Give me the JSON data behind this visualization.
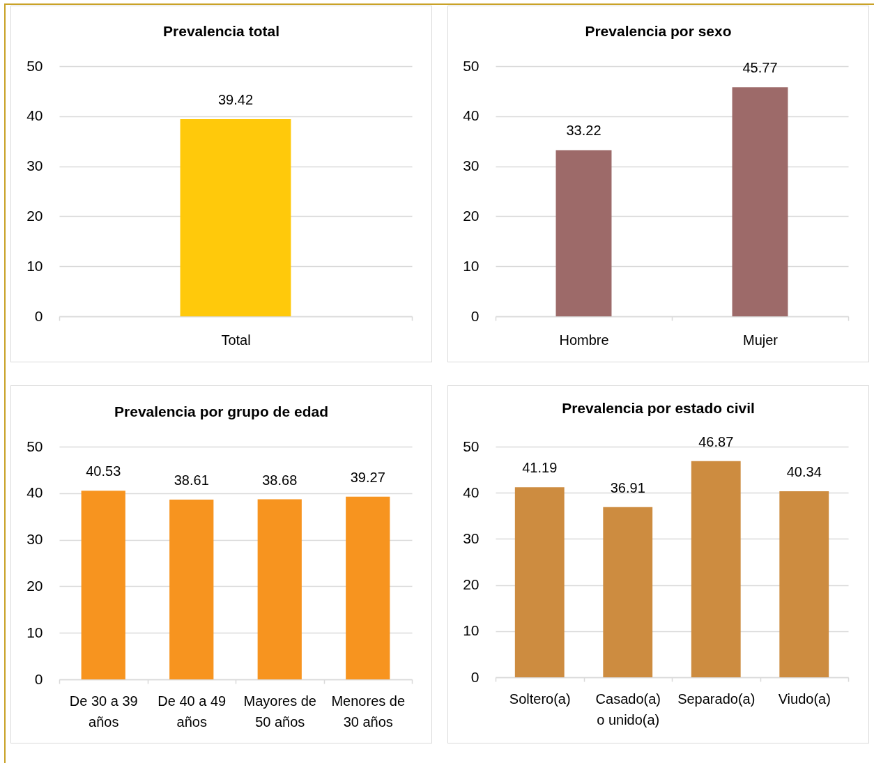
{
  "chart_data": [
    {
      "type": "bar",
      "title": "Prevalencia total",
      "categories": [
        "Total"
      ],
      "values": [
        39.42
      ],
      "color": "#ffc90b",
      "ylim": [
        0,
        50
      ],
      "yticks": [
        0,
        10,
        20,
        30,
        40,
        50
      ],
      "grid": "y",
      "data_labels": true
    },
    {
      "type": "bar",
      "title": "Prevalencia por sexo",
      "categories": [
        "Hombre",
        "Mujer"
      ],
      "values": [
        33.22,
        45.77
      ],
      "color": "#9d6a69",
      "ylim": [
        0,
        50
      ],
      "yticks": [
        0,
        10,
        20,
        30,
        40,
        50
      ],
      "grid": "y",
      "data_labels": true
    },
    {
      "type": "bar",
      "title": "Prevalencia por grupo de edad",
      "categories": [
        "De 30 a 39 años",
        "De 40 a 49 años",
        "Mayores de 50 años",
        "Menores de 30 años"
      ],
      "values": [
        40.53,
        38.61,
        38.68,
        39.27
      ],
      "color": "#f7941f",
      "ylim": [
        0,
        50
      ],
      "yticks": [
        0,
        10,
        20,
        30,
        40,
        50
      ],
      "grid": "y",
      "data_labels": true
    },
    {
      "type": "bar",
      "title": "Prevalencia por estado civil",
      "categories": [
        "Soltero(a)",
        "Casado(a) o unido(a)",
        "Separado(a)",
        "Viudo(a)"
      ],
      "values": [
        41.19,
        36.91,
        46.87,
        40.34
      ],
      "color": "#cd8c40",
      "ylim": [
        0,
        50
      ],
      "yticks": [
        0,
        10,
        20,
        30,
        40,
        50
      ],
      "grid": "y",
      "data_labels": true
    }
  ]
}
